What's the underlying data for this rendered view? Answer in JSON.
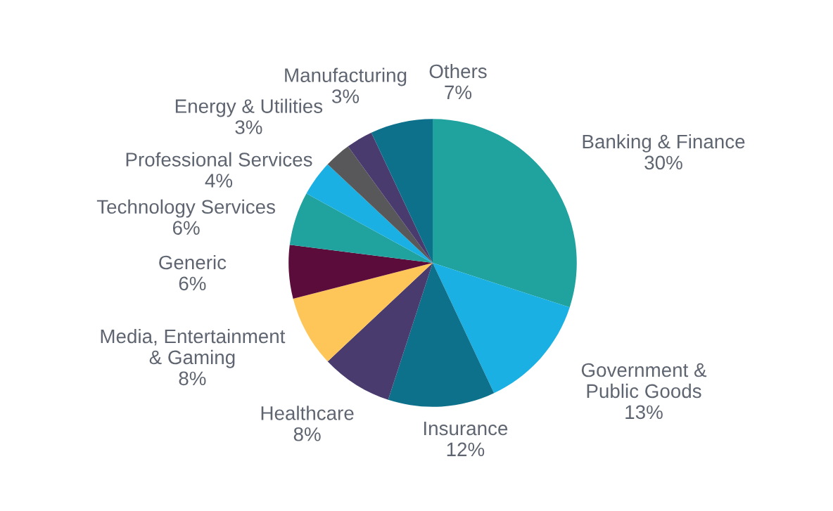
{
  "chart_data": {
    "type": "pie",
    "categories": [
      "Banking & Finance",
      "Government &\nPublic Goods",
      "Insurance",
      "Healthcare",
      "Media, Entertainment\n& Gaming",
      "Generic",
      "Technology Services",
      "Professional Services",
      "Energy & Utilities",
      "Manufacturing",
      "Others"
    ],
    "values": [
      30,
      13,
      12,
      8,
      8,
      6,
      6,
      4,
      3,
      3,
      7
    ],
    "value_labels": [
      "30%",
      "13%",
      "12%",
      "8%",
      "8%",
      "6%",
      "6%",
      "4%",
      "3%",
      "3%",
      "7%"
    ],
    "colors": [
      "#20a39e",
      "#1ab0e3",
      "#0e718c",
      "#4a3b6e",
      "#fec659",
      "#5c0c3a",
      "#20a39e",
      "#1ab0e3",
      "#58585a",
      "#4a3b6e",
      "#0e718c"
    ]
  }
}
